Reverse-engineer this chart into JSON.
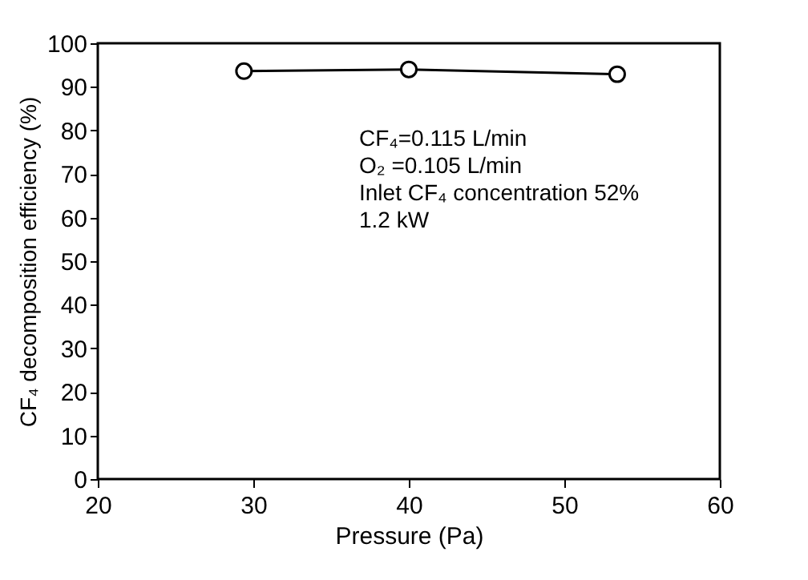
{
  "chart_data": {
    "type": "line",
    "xlabel": "Pressure (Pa)",
    "ylabel": "CF₄ decomposition efficiency (%)",
    "x": [
      29.4,
      40,
      53.4
    ],
    "series": [
      {
        "color": "#000000",
        "values": [
          93.6,
          94.0,
          92.9
        ]
      }
    ],
    "xlim": [
      20,
      60
    ],
    "xticks": [
      20,
      30,
      40,
      50,
      60
    ],
    "ylim": [
      0,
      100
    ],
    "yticks": [
      0,
      10,
      20,
      30,
      40,
      50,
      60,
      70,
      80,
      90,
      100
    ],
    "marker": "circle",
    "line_style": "solid",
    "grid": false,
    "annotations": [
      "CF₄=0.115 L/min",
      "O₂ =0.105 L/min",
      "Inlet CF₄ concentration 52%",
      "1.2 kW"
    ]
  }
}
